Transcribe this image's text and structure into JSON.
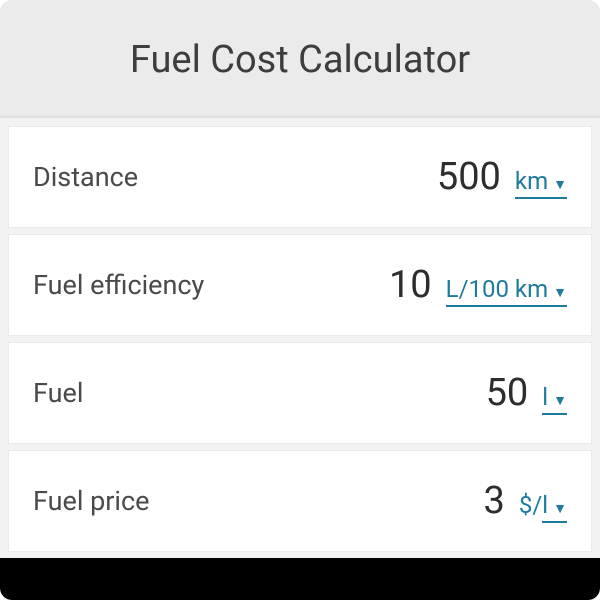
{
  "title": "Fuel Cost Calculator",
  "accent_color": "#1f7a9c",
  "text_color": "#4a4a4a",
  "value_color": "#2d2d2d",
  "header_bg": "#ebebeb",
  "row_bg": "#ffffff",
  "gap_bg": "#f2f2f2",
  "title_fontsize": 38,
  "label_fontsize": 27,
  "value_fontsize": 38,
  "unit_fontsize": 24,
  "fields": {
    "distance": {
      "label": "Distance",
      "value": "500",
      "unit": "km"
    },
    "efficiency": {
      "label": "Fuel efficiency",
      "value": "10",
      "unit": "L/100 km"
    },
    "fuel": {
      "label": "Fuel",
      "value": "50",
      "unit": "l"
    },
    "price": {
      "label": "Fuel price",
      "value": "3",
      "unit_prefix": "$/",
      "unit": "l"
    }
  }
}
